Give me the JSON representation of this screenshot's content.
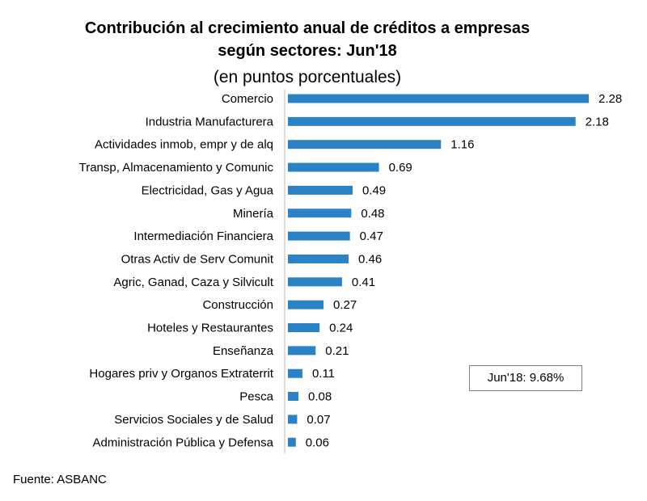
{
  "chart_title_line1": "Contribución al crecimiento anual de créditos a empresas",
  "chart_title_line2": "según sectores: Jun'18",
  "chart_subtitle": "(en puntos porcentuales)",
  "annotation": "Jun'18: 9.68%",
  "source": "Fuente: ASBANC",
  "colors": {
    "bar": "#2b83c6",
    "axis": "#bfbfbf"
  },
  "chart_data": {
    "type": "bar",
    "orientation": "horizontal",
    "categories": [
      "Comercio",
      "Industria Manufacturera",
      "Actividades inmob, empr y de alq",
      "Transp, Almacenamiento y Comunic",
      "Electricidad, Gas y Agua",
      "Minería",
      "Intermediación Financiera",
      "Otras Activ de Serv Comunit",
      "Agric, Ganad, Caza y Silvicult",
      "Construcción",
      "Hoteles y Restaurantes",
      "Enseñanza",
      "Hogares priv y Organos Extraterrit",
      "Pesca",
      "Servicios Sociales y de Salud",
      "Administración Pública y Defensa"
    ],
    "values": [
      2.28,
      2.18,
      1.16,
      0.69,
      0.49,
      0.48,
      0.47,
      0.46,
      0.41,
      0.27,
      0.24,
      0.21,
      0.11,
      0.08,
      0.07,
      0.06
    ],
    "data_labels": [
      "2.28",
      "2.18",
      "1.16",
      "0.69",
      "0.49",
      "0.48",
      "0.47",
      "0.46",
      "0.41",
      "0.27",
      "0.24",
      "0.21",
      "0.11",
      "0.08",
      "0.07",
      "0.06"
    ],
    "xlim": [
      0,
      2.28
    ],
    "grid": false,
    "legend": "none"
  }
}
